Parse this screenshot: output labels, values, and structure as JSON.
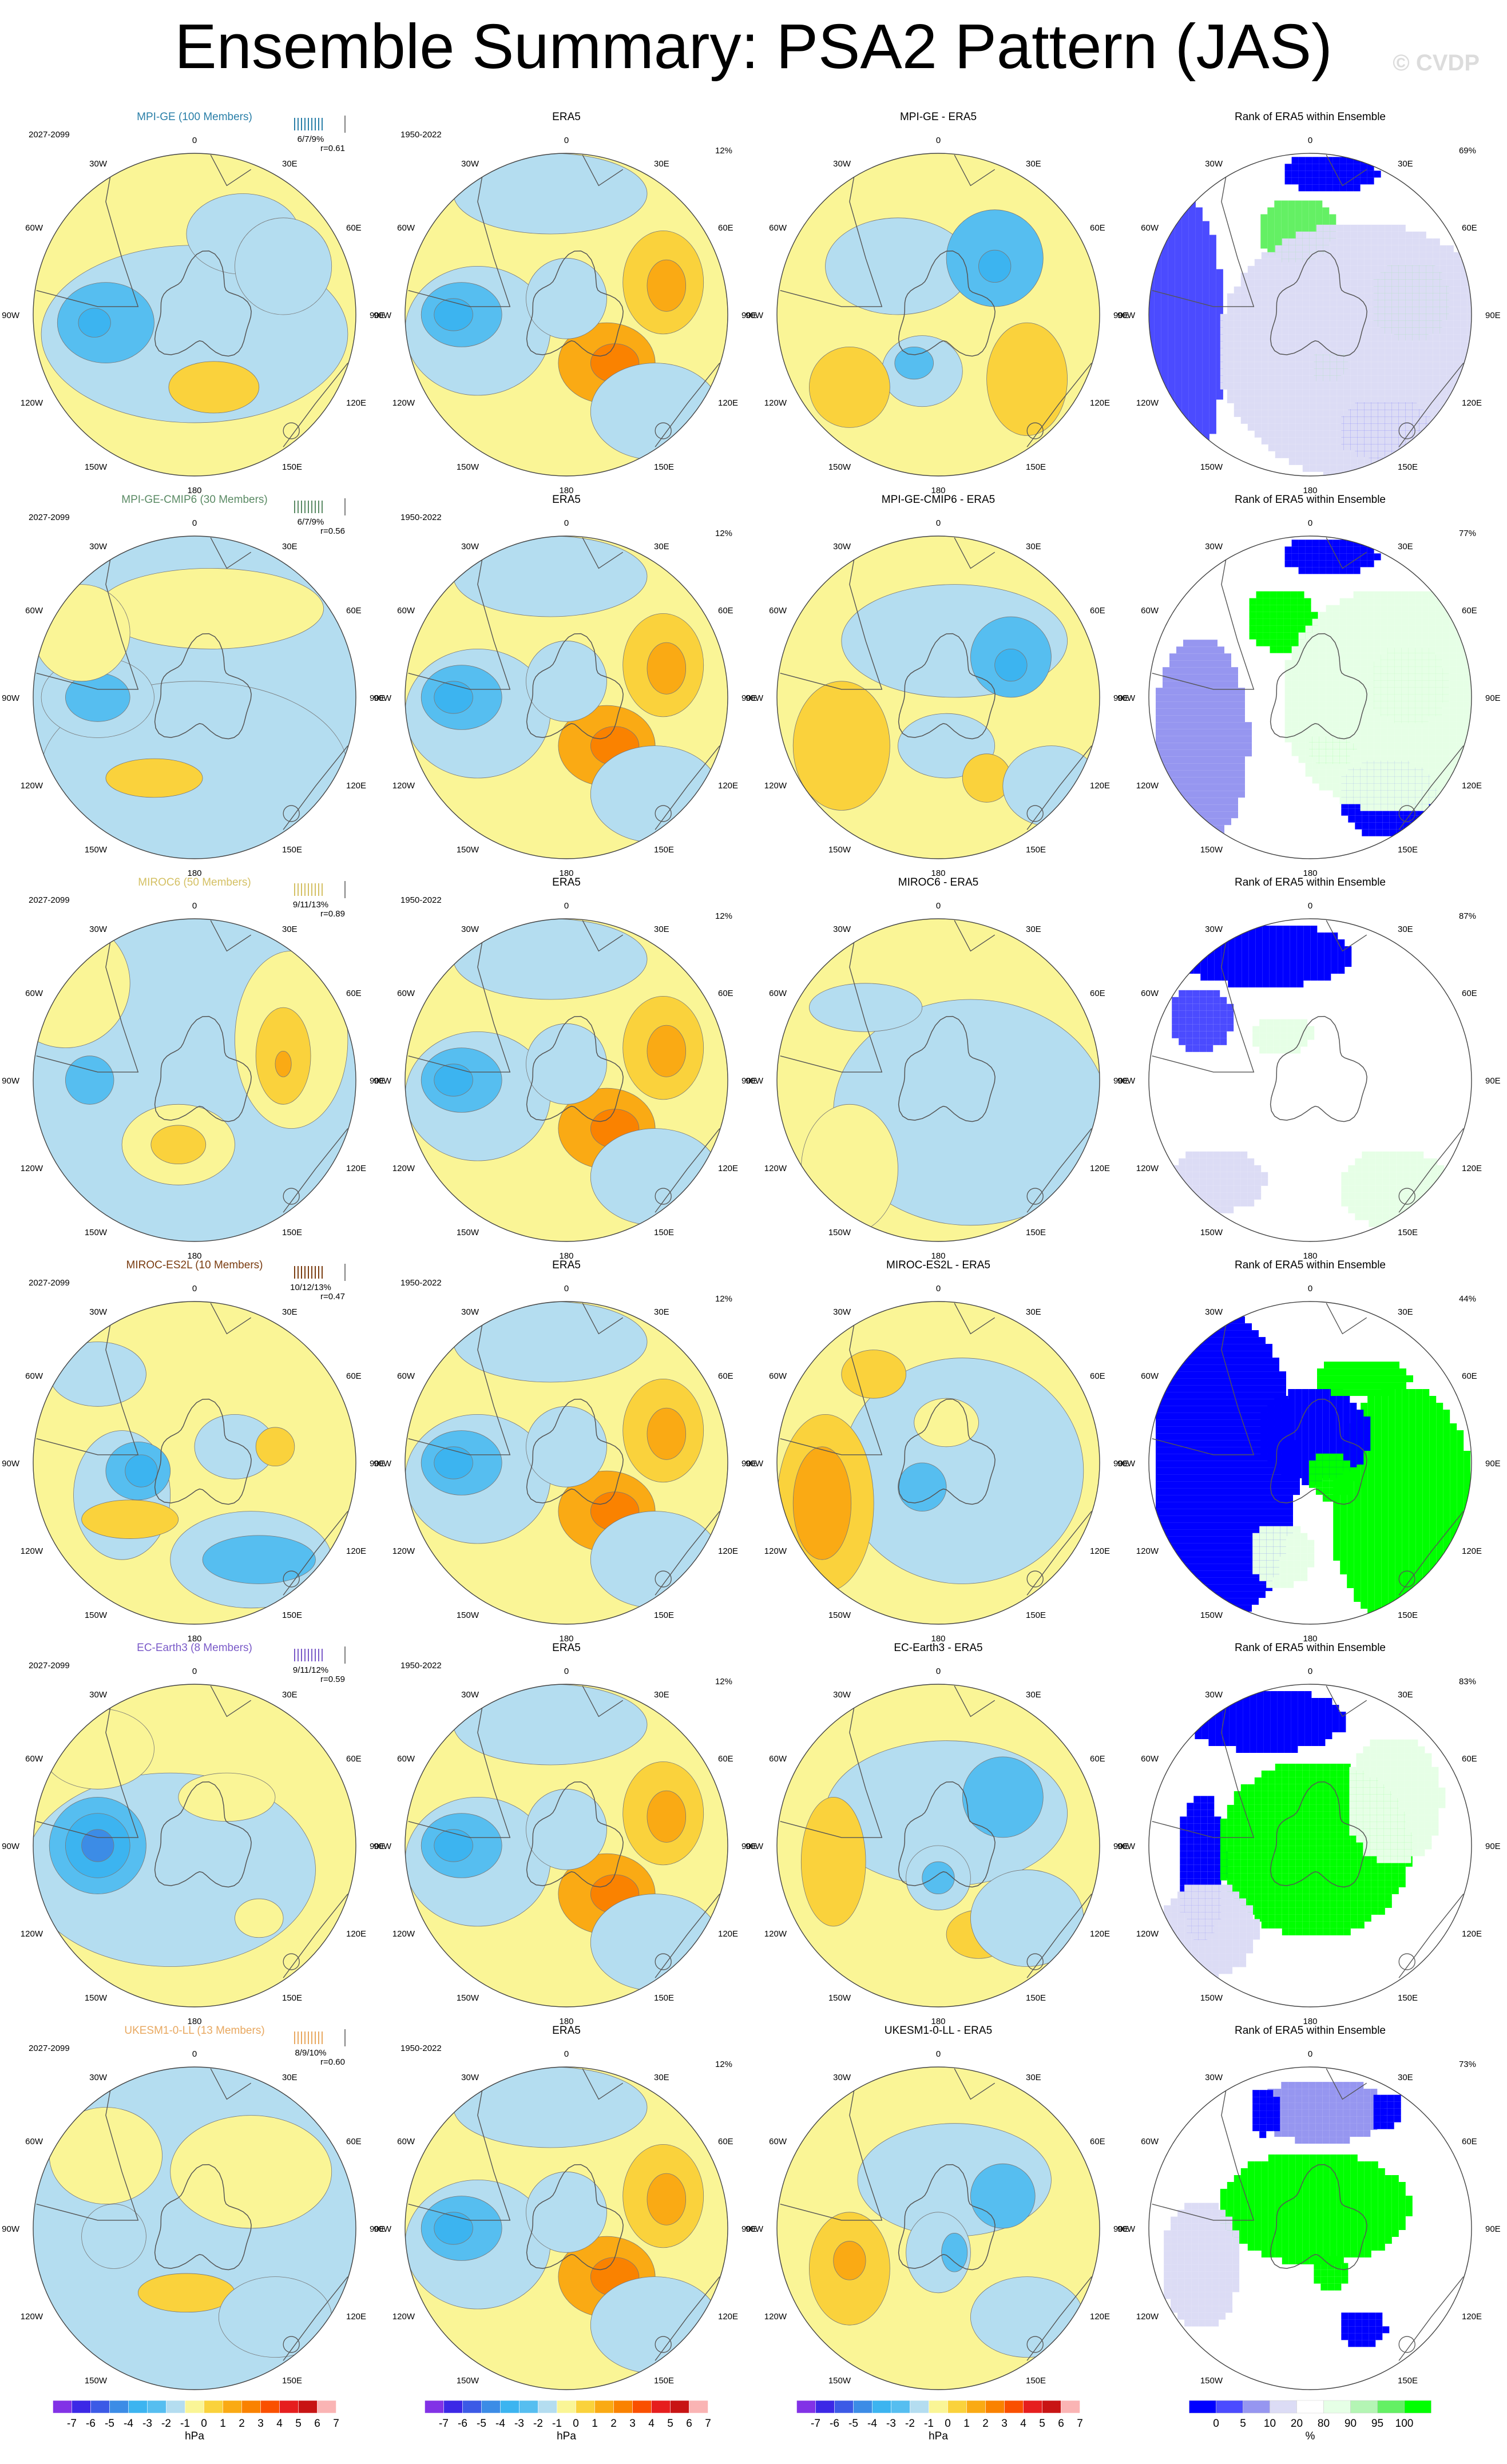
{
  "title": "Ensemble Summary: PSA2 Pattern (JAS)",
  "credit": "© CVDP",
  "colors": {
    "diverging": [
      "#8232e6",
      "#3c28e6",
      "#3c5ae6",
      "#3c8ce6",
      "#3cb4f0",
      "#56bef0",
      "#b4ddf0",
      "#faf596",
      "#fad23c",
      "#faaa14",
      "#fa8200",
      "#fa5000",
      "#e61e1e",
      "#c81414",
      "#fab4b4"
    ],
    "rank": [
      "#0000ff",
      "#4b4bff",
      "#9696f0",
      "#dcdcf5",
      "#ffffff",
      "#e6ffe6",
      "#b4f5b4",
      "#64f064",
      "#00ff00"
    ],
    "models": [
      "#2a7fa8",
      "#5a8a64",
      "#d4c064",
      "#7a3c10",
      "#7a5ac8",
      "#e8a860"
    ]
  },
  "polar_labels": [
    "0",
    "30E",
    "60E",
    "90E",
    "120E",
    "150E",
    "180",
    "150W",
    "120W",
    "90W",
    "60W",
    "30W"
  ],
  "rows": [
    {
      "model": "MPI-GE (100 Members)",
      "period": "2027-2099",
      "stats": "6/7/9%",
      "r": "r=0.61",
      "obs_title": "ERA5",
      "obs_period": "1950-2022",
      "obs_pct": "12%",
      "diff_title": "MPI-GE - ERA5",
      "rank_title": "Rank of ERA5 within Ensemble",
      "rank_pct": "69%"
    },
    {
      "model": "MPI-GE-CMIP6 (30 Members)",
      "period": "2027-2099",
      "stats": "6/7/9%",
      "r": "r=0.56",
      "obs_title": "ERA5",
      "obs_period": "1950-2022",
      "obs_pct": "12%",
      "diff_title": "MPI-GE-CMIP6 - ERA5",
      "rank_title": "Rank of ERA5 within Ensemble",
      "rank_pct": "77%"
    },
    {
      "model": "MIROC6 (50 Members)",
      "period": "2027-2099",
      "stats": "9/11/13%",
      "r": "r=0.89",
      "obs_title": "ERA5",
      "obs_period": "1950-2022",
      "obs_pct": "12%",
      "diff_title": "MIROC6 - ERA5",
      "rank_title": "Rank of ERA5 within Ensemble",
      "rank_pct": "87%"
    },
    {
      "model": "MIROC-ES2L (10 Members)",
      "period": "2027-2099",
      "stats": "10/12/13%",
      "r": "r=0.47",
      "obs_title": "ERA5",
      "obs_period": "1950-2022",
      "obs_pct": "12%",
      "diff_title": "MIROC-ES2L - ERA5",
      "rank_title": "Rank of ERA5 within Ensemble",
      "rank_pct": "44%"
    },
    {
      "model": "EC-Earth3 (8 Members)",
      "period": "2027-2099",
      "stats": "9/11/12%",
      "r": "r=0.59",
      "obs_title": "ERA5",
      "obs_period": "1950-2022",
      "obs_pct": "12%",
      "diff_title": "EC-Earth3 - ERA5",
      "rank_title": "Rank of ERA5 within Ensemble",
      "rank_pct": "83%"
    },
    {
      "model": "UKESM1-0-LL (13 Members)",
      "period": "2027-2099",
      "stats": "8/9/10%",
      "r": "r=0.60",
      "obs_title": "ERA5",
      "obs_period": "1950-2022",
      "obs_pct": "12%",
      "diff_title": "UKESM1-0-LL - ERA5",
      "rank_title": "Rank of ERA5 within Ensemble",
      "rank_pct": "73%"
    }
  ],
  "colorbar": {
    "ticks": [
      "-7",
      "-6",
      "-5",
      "-4",
      "-3",
      "-2",
      "-1",
      "0",
      "1",
      "2",
      "3",
      "4",
      "5",
      "6",
      "7"
    ],
    "unit": "hPa",
    "rank_ticks": [
      "0",
      "5",
      "10",
      "20",
      "80",
      "90",
      "95",
      "100"
    ],
    "rank_unit": "%"
  }
}
